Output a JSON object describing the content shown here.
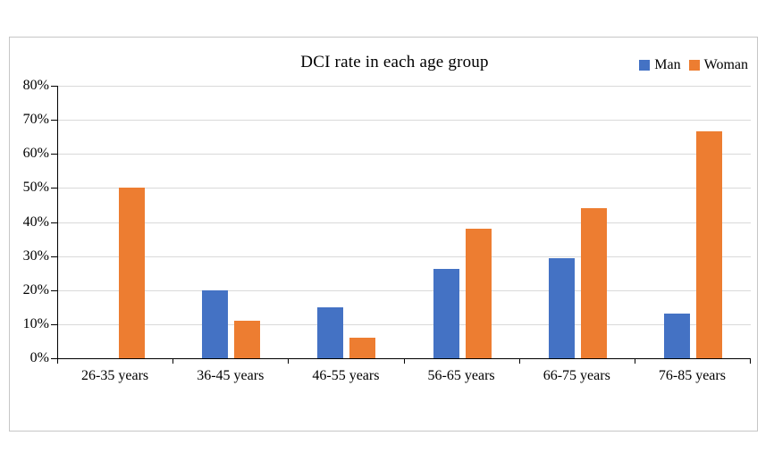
{
  "chart_data": {
    "type": "bar",
    "title": "DCI rate in each age group",
    "categories": [
      "26-35 years",
      "36-45 years",
      "46-55 years",
      "56-65 years",
      "66-75 years",
      "76-85 years"
    ],
    "series": [
      {
        "name": "Man",
        "color": "#4472C4",
        "values": [
          0,
          20,
          15,
          26.3,
          29.4,
          13
        ]
      },
      {
        "name": "Woman",
        "color": "#ED7D31",
        "values": [
          50,
          11.1,
          6,
          38.1,
          44,
          66.7
        ]
      }
    ],
    "y_axis": {
      "min": 0,
      "max": 80,
      "step": 10,
      "tick_labels": [
        "0%",
        "10%",
        "20%",
        "30%",
        "40%",
        "50%",
        "60%",
        "70%",
        "80%"
      ],
      "format": "percent"
    },
    "xlabel": "",
    "ylabel": "",
    "grid": true,
    "gridline_color": "#d9d9d9",
    "axis_color": "#000000",
    "legend_position": "top-right"
  }
}
